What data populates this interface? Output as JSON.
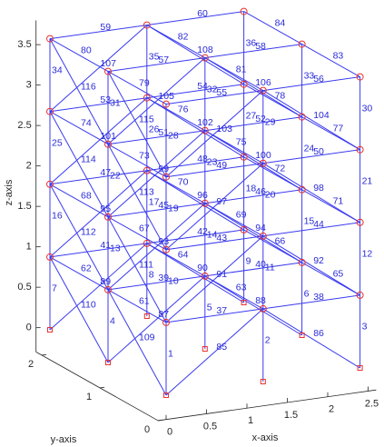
{
  "chart_data": {
    "type": "truss3d",
    "xlabel": "x-axis",
    "ylabel": "y-axis",
    "zlabel": "z-axis",
    "x_levels": [
      0,
      1.2,
      2.4
    ],
    "y_levels": [
      0,
      1,
      2
    ],
    "z_levels": [
      0,
      0.9,
      1.8,
      2.7,
      3.6
    ],
    "xlim": [
      -0.1,
      2.6
    ],
    "ylim": [
      0,
      2.1
    ],
    "zlim": [
      -0.3,
      3.8
    ],
    "xticks": [
      0,
      0.5,
      1,
      1.5,
      2,
      2.5
    ],
    "yticks": [
      0,
      1,
      2
    ],
    "zticks": [
      0,
      0.5,
      1,
      1.5,
      2,
      2.5,
      3,
      3.5
    ],
    "member_color": "#3a3af0",
    "node_color": "#e8332e",
    "member_labels": [
      1,
      2,
      3,
      4,
      5,
      6,
      7,
      8,
      9,
      10,
      11,
      12,
      13,
      14,
      15,
      16,
      17,
      18,
      19,
      20,
      21,
      22,
      23,
      24,
      25,
      26,
      27,
      28,
      29,
      30,
      31,
      32,
      33,
      34,
      35,
      36,
      37,
      38,
      39,
      40,
      41,
      42,
      43,
      44,
      45,
      46,
      47,
      48,
      49,
      50,
      51,
      52,
      53,
      54,
      55,
      56,
      57,
      58,
      59,
      60,
      61,
      62,
      63,
      64,
      65,
      66,
      67,
      68,
      69,
      70,
      71,
      72,
      73,
      74,
      75,
      76,
      77,
      78,
      79,
      80,
      81,
      82,
      83,
      84,
      85,
      86,
      87,
      88,
      89,
      90,
      91,
      92,
      93,
      94,
      95,
      96,
      97,
      98,
      99,
      100,
      101,
      102,
      103,
      104,
      105,
      106,
      107,
      108,
      109,
      110,
      111,
      112,
      113,
      114,
      115,
      116
    ]
  }
}
